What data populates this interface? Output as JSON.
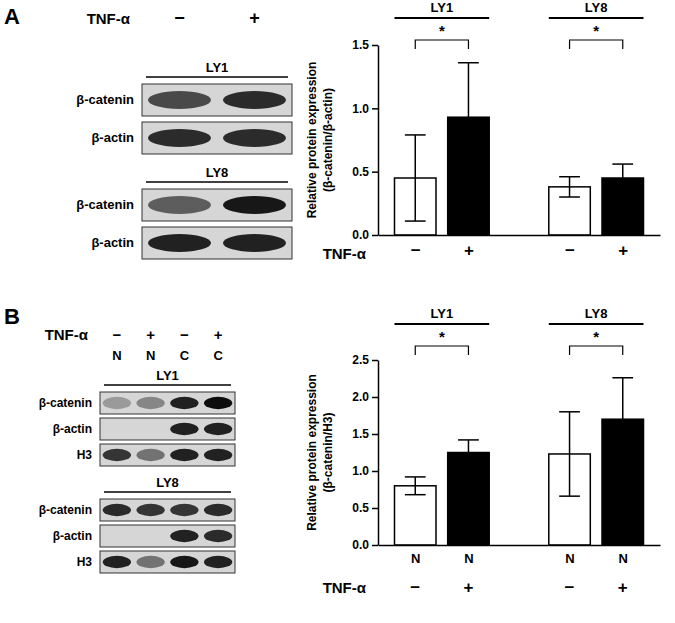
{
  "panel_labels": [
    "A",
    "B"
  ],
  "blots": [
    {
      "treatment_label": "TNF-α",
      "treatment": [
        "−",
        "+"
      ],
      "groups": [
        {
          "name": "LY1",
          "rows": [
            "β-catenin",
            "β-actin"
          ],
          "bands": [
            [
              0.7,
              0.85
            ],
            [
              0.85,
              0.85
            ]
          ]
        },
        {
          "name": "LY8",
          "rows": [
            "β-catenin",
            "β-actin"
          ],
          "bands": [
            [
              0.6,
              0.95
            ],
            [
              0.9,
              0.9
            ]
          ]
        }
      ]
    },
    {
      "treatment_label": "TNF-α",
      "treatment": [
        "−",
        "+",
        "−",
        "+"
      ],
      "fractions": [
        "N",
        "N",
        "C",
        "C"
      ],
      "groups": [
        {
          "name": "LY1",
          "rows": [
            "β-catenin",
            "β-actin",
            "H3"
          ],
          "bands": [
            [
              0.3,
              0.4,
              0.9,
              1.0
            ],
            [
              0,
              0,
              0.9,
              0.9
            ],
            [
              0.8,
              0.5,
              0.9,
              0.9
            ]
          ]
        },
        {
          "name": "LY8",
          "rows": [
            "β-catenin",
            "β-actin",
            "H3"
          ],
          "bands": [
            [
              0.85,
              0.8,
              0.8,
              0.85
            ],
            [
              0,
              0,
              0.9,
              0.85
            ],
            [
              0.9,
              0.5,
              0.95,
              0.9
            ]
          ]
        }
      ]
    }
  ],
  "chart_data": [
    {
      "type": "bar",
      "categories": [
        "−",
        "+",
        "−",
        "+"
      ],
      "x_label": "TNF-α",
      "y_label": [
        "Relative protein expression",
        "(β-catenin/β-actin)"
      ],
      "values": [
        0.45,
        0.93,
        0.38,
        0.45
      ],
      "errors": [
        0.34,
        0.43,
        0.08,
        0.11
      ],
      "colors": [
        "#ffffff",
        "#000000",
        "#ffffff",
        "#000000"
      ],
      "ylim": [
        0,
        1.5
      ],
      "yticks": [
        {
          "value": 0,
          "label": "0.0"
        },
        {
          "value": 0.5,
          "label": "0.5"
        },
        {
          "value": 1,
          "label": "1.0"
        },
        {
          "value": 1.5,
          "label": "1.5"
        }
      ],
      "groups": [
        {
          "label": "LY1",
          "categories": [
            0,
            1
          ],
          "annotation": "*"
        },
        {
          "label": "LY8",
          "categories": [
            2,
            3
          ],
          "annotation": "*"
        }
      ]
    },
    {
      "type": "bar",
      "categories": [
        "N",
        "N",
        "N",
        "N"
      ],
      "treatment": [
        "−",
        "+",
        "−",
        "+"
      ],
      "x_label": "TNF-α",
      "y_label": [
        "Relative protein expression",
        "(β-catenin/H3)"
      ],
      "values": [
        0.8,
        1.25,
        1.23,
        1.7
      ],
      "errors": [
        0.12,
        0.17,
        0.57,
        0.56
      ],
      "colors": [
        "#ffffff",
        "#000000",
        "#ffffff",
        "#000000"
      ],
      "ylim": [
        0,
        2.5
      ],
      "yticks": [
        {
          "value": 0,
          "label": "0.0"
        },
        {
          "value": 0.5,
          "label": "0.5"
        },
        {
          "value": 1,
          "label": "1.0"
        },
        {
          "value": 1.5,
          "label": "1.5"
        },
        {
          "value": 2,
          "label": "2.0"
        },
        {
          "value": 2.5,
          "label": "2.5"
        }
      ],
      "groups": [
        {
          "label": "LY1",
          "categories": [
            0,
            1
          ],
          "annotation": "*"
        },
        {
          "label": "LY8",
          "categories": [
            2,
            3
          ],
          "annotation": "*"
        }
      ]
    }
  ]
}
